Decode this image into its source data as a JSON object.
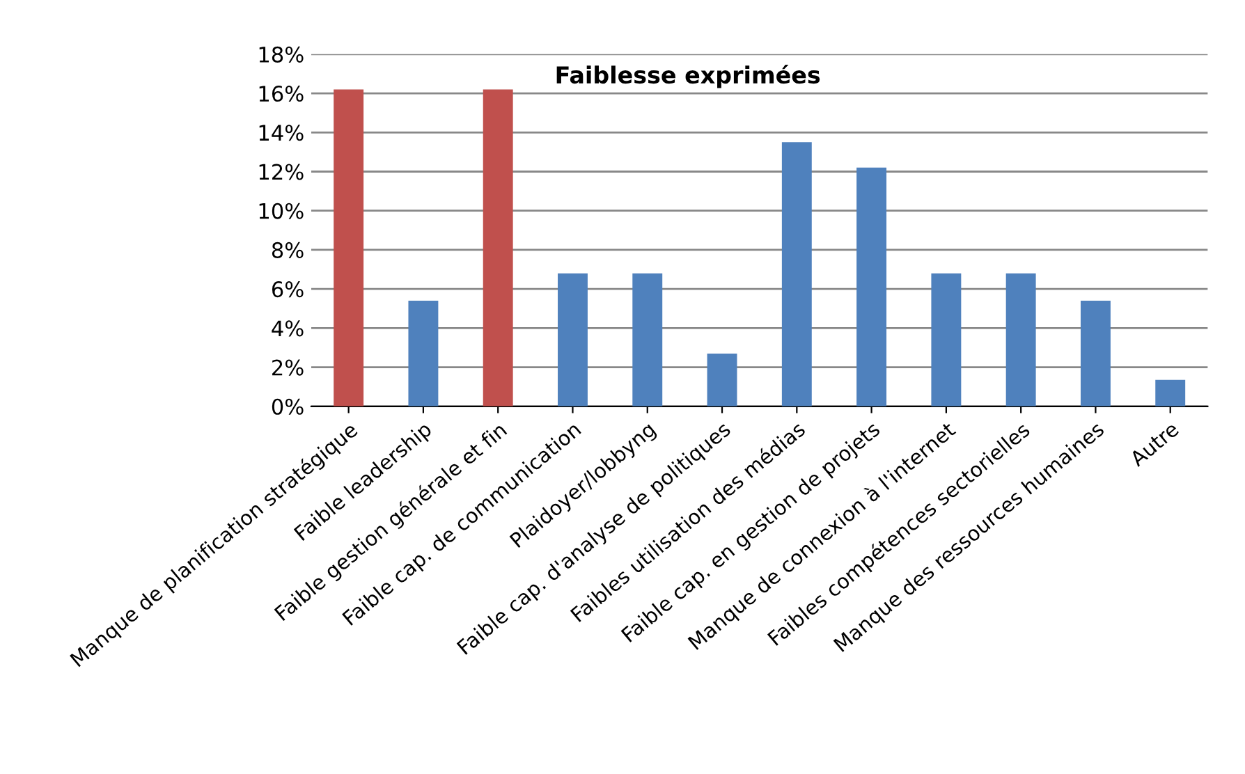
{
  "chart_data": {
    "type": "bar",
    "title": "Faiblesse exprimées",
    "categories": [
      "Manque de planification stratégique",
      "Faible leadership",
      "Faible gestion générale et fin",
      "Faible cap. de communication",
      "Plaidoyer/lobbyng",
      "Faible cap. d'analyse de politiques",
      "Faibles utilisation des médias",
      "Faible cap. en gestion de projets",
      "Manque de connexion à l'internet",
      "Faibles compétences sectorielles",
      "Manque des ressources humaines",
      "Autre"
    ],
    "values": [
      16.2,
      5.4,
      16.2,
      6.8,
      6.8,
      2.7,
      13.5,
      12.2,
      6.8,
      6.8,
      5.4,
      1.35
    ],
    "colors": [
      "#c0504d",
      "#4f81bd",
      "#c0504d",
      "#4f81bd",
      "#4f81bd",
      "#4f81bd",
      "#4f81bd",
      "#4f81bd",
      "#4f81bd",
      "#4f81bd",
      "#4f81bd",
      "#4f81bd"
    ],
    "ylim": [
      0,
      18
    ],
    "yticks": [
      {
        "value": 0,
        "label": "0%"
      },
      {
        "value": 2,
        "label": "2%"
      },
      {
        "value": 4,
        "label": "4%"
      },
      {
        "value": 6,
        "label": "6%"
      },
      {
        "value": 8,
        "label": "8%"
      },
      {
        "value": 10,
        "label": "10%"
      },
      {
        "value": 12,
        "label": "12%"
      },
      {
        "value": 14,
        "label": "14%"
      },
      {
        "value": 16,
        "label": "16%"
      },
      {
        "value": 18,
        "label": "18%"
      }
    ],
    "grid": "y"
  }
}
